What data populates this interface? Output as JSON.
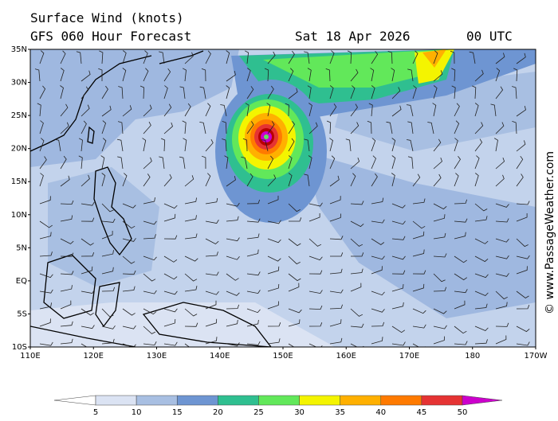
{
  "header": {
    "title": "Surface Wind (knots)",
    "model": "GFS 060 Hour Forecast",
    "date": "Sat 18 Apr 2026",
    "time": "00 UTC"
  },
  "credit": "© www.PassageWeather.com",
  "map": {
    "lat_ticks": [
      {
        "value": 35,
        "label": "35N"
      },
      {
        "value": 30,
        "label": "30N"
      },
      {
        "value": 25,
        "label": "25N"
      },
      {
        "value": 20,
        "label": "20N"
      },
      {
        "value": 15,
        "label": "15N"
      },
      {
        "value": 10,
        "label": "10N"
      },
      {
        "value": 5,
        "label": "5N"
      },
      {
        "value": 0,
        "label": "EQ"
      },
      {
        "value": -5,
        "label": "5S"
      },
      {
        "value": -10,
        "label": "10S"
      }
    ],
    "lon_ticks": [
      {
        "value": 110,
        "label": "110E"
      },
      {
        "value": 120,
        "label": "120E"
      },
      {
        "value": 130,
        "label": "130E"
      },
      {
        "value": 140,
        "label": "140E"
      },
      {
        "value": 150,
        "label": "150E"
      },
      {
        "value": 160,
        "label": "160E"
      },
      {
        "value": 170,
        "label": "170E"
      },
      {
        "value": 180,
        "label": "180"
      },
      {
        "value": 190,
        "label": "170W"
      }
    ]
  },
  "colorbar": {
    "ticks": [
      5,
      10,
      15,
      20,
      25,
      30,
      35,
      40,
      45,
      50
    ],
    "colors": [
      "#ffffff",
      "#dbe3f3",
      "#a8bfe2",
      "#6e95d2",
      "#2fbf90",
      "#62e85a",
      "#f4f400",
      "#ffb000",
      "#ff7a00",
      "#e53333",
      "#b80000",
      "#cc00cc"
    ]
  }
}
